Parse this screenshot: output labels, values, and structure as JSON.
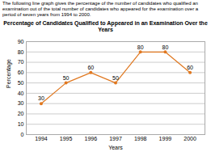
{
  "chart_data": {
    "type": "line",
    "subtitle": "The following line graph gives the percentage of the number of candidates who qualified an\nexamination out of the total number of candidates who appeared for the examination over a\nperiod of seven years from 1994 to 2000.",
    "title": "Percentage of Candidates Qualified to Appeared in an Examination Over the\nYears",
    "x": [
      1994,
      1995,
      1996,
      1997,
      1998,
      1999,
      2000
    ],
    "values": [
      30,
      50,
      60,
      50,
      80,
      80,
      60
    ],
    "color": "#E07820",
    "marker": "circle",
    "xlabel": "Years",
    "ylabel": "Percentage",
    "xlim": [
      1993.4,
      2000.6
    ],
    "xticks": [
      1994,
      1995,
      1996,
      1997,
      1998,
      1999,
      2000
    ],
    "ylim": [
      0,
      90
    ],
    "yticks": [
      0,
      10,
      20,
      30,
      40,
      50,
      60,
      70,
      80,
      90
    ],
    "grid": true,
    "data_labels": true
  }
}
